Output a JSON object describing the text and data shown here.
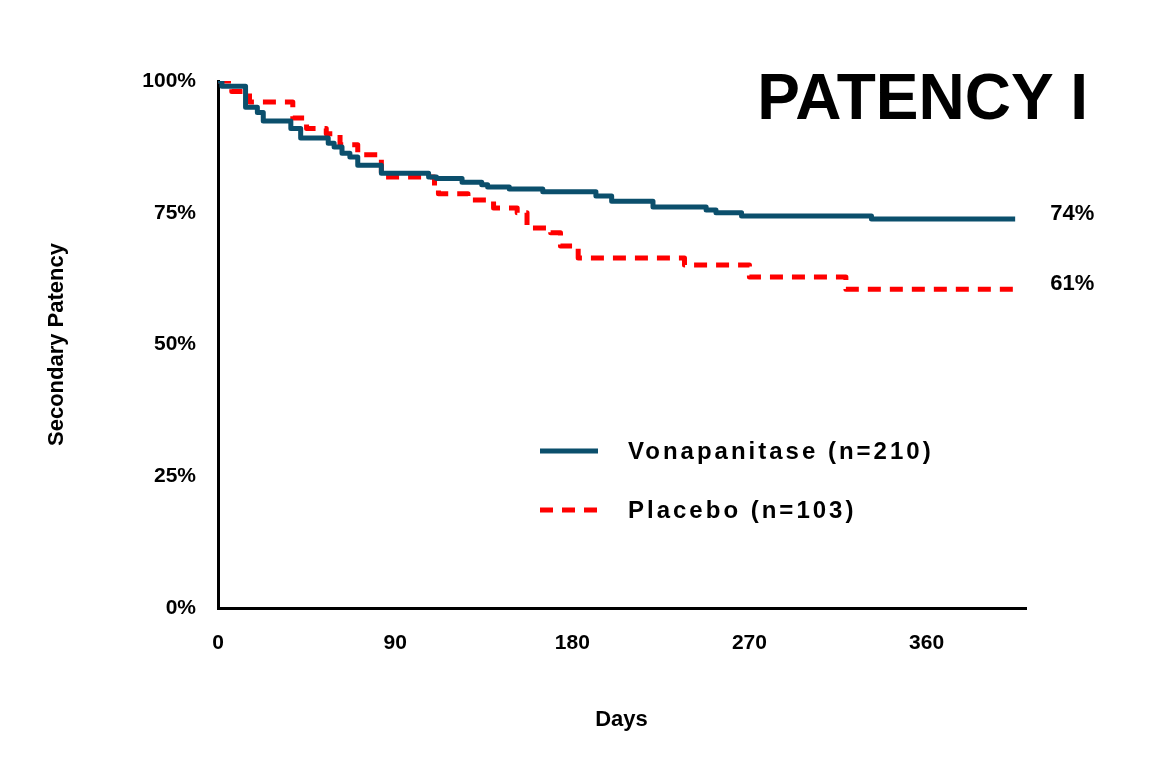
{
  "chart_data": {
    "type": "step",
    "title": "PATENCY I",
    "xlabel": "Days",
    "ylabel": "Secondary Patency",
    "xlim": [
      0,
      410
    ],
    "xticks": [
      0,
      90,
      180,
      270,
      360
    ],
    "ylim": [
      0,
      100
    ],
    "yticks": [
      {
        "value": 0,
        "label": "0%"
      },
      {
        "value": 25,
        "label": "25%"
      },
      {
        "value": 50,
        "label": "50%"
      },
      {
        "value": 75,
        "label": "75%"
      },
      {
        "value": 100,
        "label": "100%"
      }
    ],
    "grid": false,
    "legend": "right",
    "marker": "none",
    "series": [
      {
        "name": "Vonapanitase (n=210)",
        "color": "#0b4f6c",
        "line_style": "solid",
        "x": [
          0,
          2,
          14,
          20,
          23,
          37,
          42,
          56,
          59,
          63,
          67,
          71,
          83,
          107,
          111,
          124,
          134,
          137,
          148,
          165,
          192,
          200,
          221,
          248,
          253,
          266,
          332,
          405
        ],
        "values": [
          100,
          99,
          95,
          94,
          92.4,
          91,
          89.2,
          88.2,
          87.5,
          86.3,
          85.6,
          84,
          82.5,
          81.8,
          81.5,
          80.8,
          80.3,
          79.9,
          79.5,
          79,
          78.2,
          77.2,
          76.1,
          75.5,
          75,
          74.4,
          73.8,
          73.8
        ]
      },
      {
        "name": "Placebo (n=103)",
        "color": "#ff0000",
        "line_style": "dashed",
        "x": [
          0,
          7,
          16,
          38,
          45,
          55,
          62,
          71,
          83,
          110,
          112,
          127,
          140,
          152,
          157,
          169,
          174,
          183,
          237,
          270,
          319,
          405
        ],
        "values": [
          100,
          98,
          96,
          93,
          91,
          90,
          87.9,
          86,
          81.8,
          79.9,
          78.6,
          77.4,
          75.9,
          75,
          72.1,
          71.2,
          68.7,
          66.4,
          65.1,
          62.8,
          60.5,
          60.5
        ]
      }
    ],
    "annotations": [
      {
        "text": "74%",
        "x": 405,
        "y": 73.8
      },
      {
        "text": "61%",
        "x": 405,
        "y": 60.5
      }
    ]
  }
}
